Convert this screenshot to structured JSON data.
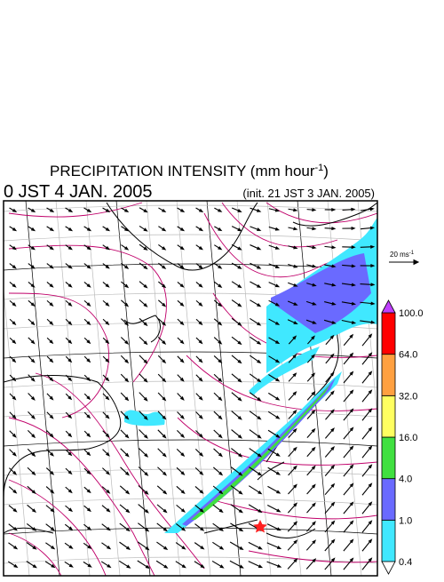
{
  "header": {
    "title": "PRECIPITATION INTENSITY (mm hour",
    "title_sup": "-1",
    "title_end": ")",
    "time": "0 JST 4 JAN. 2005",
    "init": "(init. 21 JST 3 JAN. 2005)"
  },
  "wind_scale": {
    "label": "20 ms",
    "label_sup": "-1"
  },
  "colorbar": {
    "labels": [
      "0.4",
      "1.0",
      "4.0",
      "16.0",
      "32.0",
      "64.0",
      "100.0"
    ],
    "colors": [
      "#40e8ff",
      "#6a6aff",
      "#40e040",
      "#ffff60",
      "#ffa040",
      "#ff0000"
    ],
    "over_color": "#c040ff",
    "under_color": "#ffffff"
  }
}
